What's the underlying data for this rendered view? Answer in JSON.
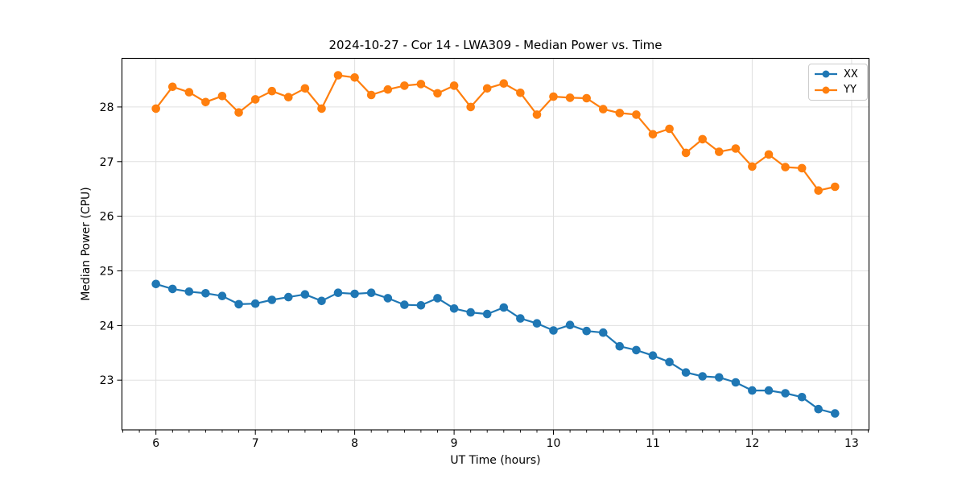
{
  "figure": {
    "background": "#ffffff"
  },
  "chart_data": {
    "type": "line",
    "title": "2024-10-27 - Cor 14 - LWA309 - Median Power vs. Time",
    "xlabel": "UT Time (hours)",
    "ylabel": "Median Power (CPU)",
    "xlim": [
      5.658,
      13.175
    ],
    "ylim": [
      22.09,
      28.89
    ],
    "x_major_ticks": [
      6,
      7,
      8,
      9,
      10,
      11,
      12,
      13
    ],
    "y_major_ticks": [
      23,
      24,
      25,
      26,
      27,
      28
    ],
    "x_minor_step": 0.166667,
    "grid": true,
    "legend_position": "upper right",
    "marker": "o",
    "x": [
      6.0,
      6.1667,
      6.3333,
      6.5,
      6.6667,
      6.8333,
      7.0,
      7.1667,
      7.3333,
      7.5,
      7.6667,
      7.8333,
      8.0,
      8.1667,
      8.3333,
      8.5,
      8.6667,
      8.8333,
      9.0,
      9.1667,
      9.3333,
      9.5,
      9.6667,
      9.8333,
      10.0,
      10.1667,
      10.3333,
      10.5,
      10.6667,
      10.8333,
      11.0,
      11.1667,
      11.3333,
      11.5,
      11.6667,
      11.8333,
      12.0,
      12.1667,
      12.3333,
      12.5,
      12.6667,
      12.8333
    ],
    "series": [
      {
        "name": "XX",
        "color": "#1f77b4",
        "values": [
          24.76,
          24.67,
          24.62,
          24.59,
          24.54,
          24.39,
          24.4,
          24.47,
          24.52,
          24.57,
          24.45,
          24.6,
          24.58,
          24.6,
          24.5,
          24.38,
          24.37,
          24.5,
          24.31,
          24.24,
          24.21,
          24.33,
          24.13,
          24.04,
          23.91,
          24.01,
          23.9,
          23.87,
          23.62,
          23.55,
          23.45,
          23.33,
          23.14,
          23.07,
          23.05,
          22.96,
          22.81,
          22.81,
          22.76,
          22.69,
          22.47,
          22.39
        ]
      },
      {
        "name": "YY",
        "color": "#ff7f0e",
        "values": [
          27.97,
          28.37,
          28.27,
          28.09,
          28.2,
          27.9,
          28.14,
          28.29,
          28.18,
          28.34,
          27.97,
          28.58,
          28.54,
          28.22,
          28.32,
          28.39,
          28.42,
          28.25,
          28.39,
          28.0,
          28.34,
          28.43,
          28.26,
          27.86,
          28.19,
          28.17,
          28.16,
          27.96,
          27.89,
          27.86,
          27.5,
          27.6,
          27.16,
          27.41,
          27.18,
          27.24,
          26.91,
          27.13,
          26.9,
          26.88,
          26.47,
          26.54
        ]
      }
    ]
  },
  "legend": {
    "items": [
      {
        "label": "XX",
        "color": "#1f77b4"
      },
      {
        "label": "YY",
        "color": "#ff7f0e"
      }
    ]
  },
  "colors": {
    "grid": "#e0e0e0",
    "spine": "#000000",
    "tick": "#000000",
    "text": "#000000"
  }
}
